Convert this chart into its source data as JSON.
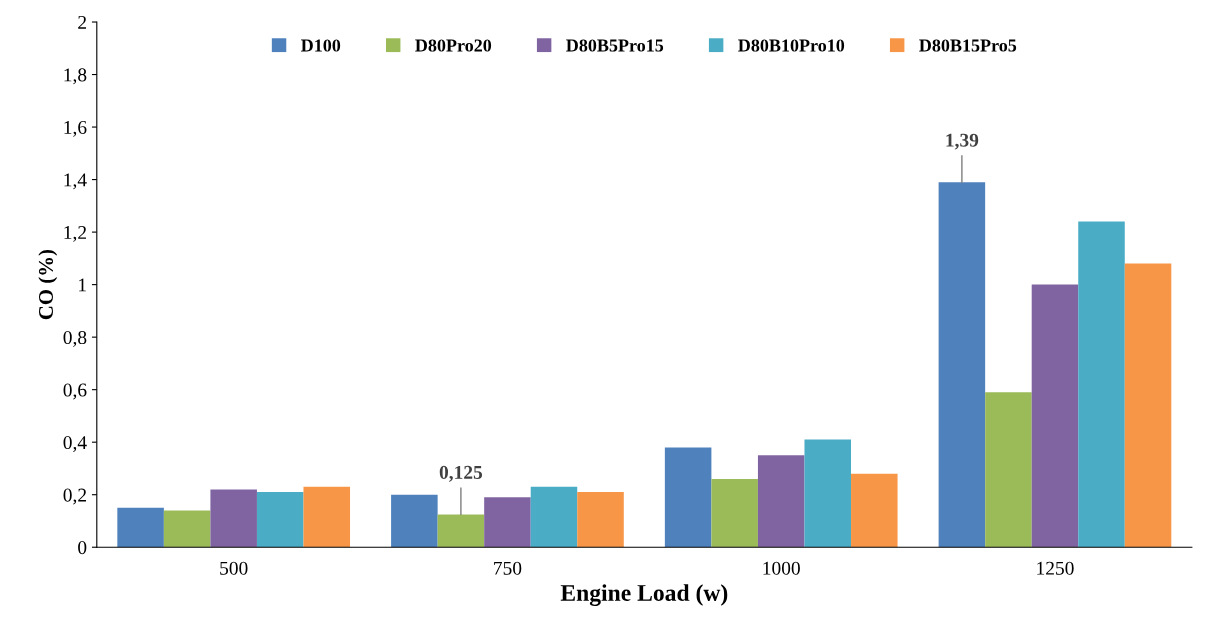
{
  "chart_data": {
    "type": "bar",
    "xlabel": "Engine Load (w)",
    "ylabel": "CO (%)",
    "categories": [
      "500",
      "750",
      "1000",
      "1250"
    ],
    "series": [
      {
        "name": "D100",
        "color": "#4f81bd",
        "values": [
          0.15,
          0.2,
          0.38,
          1.39
        ],
        "value_labels": [
          null,
          null,
          null,
          "1,39"
        ]
      },
      {
        "name": "D80Pro20",
        "color": "#9bbb59",
        "values": [
          0.14,
          0.125,
          0.26,
          0.59
        ],
        "value_labels": [
          null,
          "0,125",
          null,
          null
        ]
      },
      {
        "name": "D80B5Pro15",
        "color": "#8064a2",
        "values": [
          0.22,
          0.19,
          0.35,
          1.0
        ]
      },
      {
        "name": "D80B10Pro10",
        "color": "#4bacc6",
        "values": [
          0.21,
          0.23,
          0.41,
          1.24
        ]
      },
      {
        "name": "D80B15Pro5",
        "color": "#f79646",
        "values": [
          0.23,
          0.21,
          0.28,
          1.08
        ]
      }
    ],
    "ylim": [
      0,
      2
    ],
    "yticks": [
      0,
      {
        "value": 0.2,
        "label": "0,2"
      },
      {
        "value": 0.4,
        "label": "0,4"
      },
      {
        "value": 0.6,
        "label": "0,6"
      },
      {
        "value": 0.8,
        "label": "0,8"
      },
      1,
      {
        "value": 1.2,
        "label": "1,2"
      },
      {
        "value": 1.4,
        "label": "1,4"
      },
      {
        "value": 1.6,
        "label": "1,6"
      },
      {
        "value": 1.8,
        "label": "1,8"
      },
      2
    ],
    "grid": false,
    "legend": "top"
  }
}
